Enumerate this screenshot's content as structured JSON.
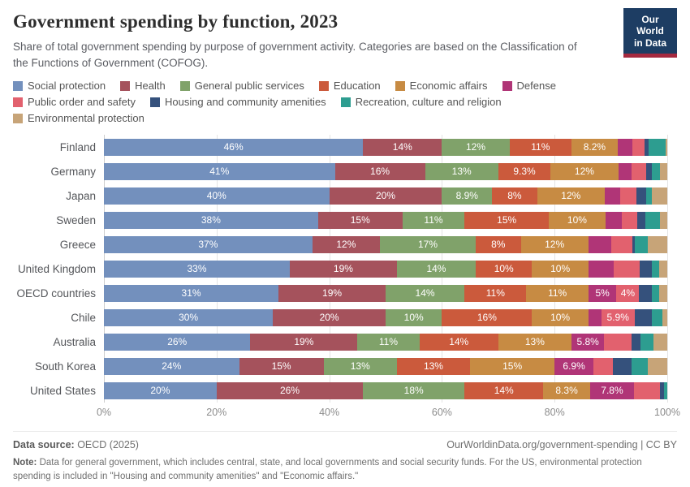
{
  "header": {
    "title": "Government spending by function, 2023",
    "subtitle": "Share of total government spending by purpose of government activity. Categories are based on the Classification of the Functions of Government (COFOG).",
    "logo": {
      "line1": "Our World",
      "line2": "in Data"
    }
  },
  "brand_colors": {
    "logo_navy": "#1d3d63",
    "logo_red": "#a5293f"
  },
  "chart_data": {
    "type": "bar",
    "variant": "horizontal-stacked",
    "unit": "%",
    "legend_position": "top",
    "grid": "vertical",
    "x_axis": {
      "min": 0,
      "max": 100,
      "ticks": [
        "0%",
        "20%",
        "40%",
        "60%",
        "80%",
        "100%"
      ]
    },
    "series_names": [
      "Social protection",
      "Health",
      "General public services",
      "Education",
      "Economic affairs",
      "Defense",
      "Public order and safety",
      "Housing and community amenities",
      "Recreation, culture and religion",
      "Environmental protection"
    ],
    "series_colors": [
      "#7390bd",
      "#a5525c",
      "#80a26a",
      "#cb5a3c",
      "#c78b43",
      "#b03577",
      "#e2616e",
      "#35517c",
      "#2d9d90",
      "#c7a478"
    ],
    "rows": [
      {
        "country": "Finland",
        "values": [
          46,
          14,
          12,
          11,
          8.2,
          2.6,
          2.2,
          0.7,
          3.0,
          0.3
        ],
        "labels": [
          "46%",
          "14%",
          "12%",
          "11%",
          "8.2%",
          "",
          "",
          "",
          "",
          ""
        ]
      },
      {
        "country": "Germany",
        "values": [
          41,
          16,
          13,
          9.3,
          12,
          2.3,
          2.7,
          0.9,
          1.5,
          1.3
        ],
        "labels": [
          "41%",
          "16%",
          "13%",
          "9.3%",
          "12%",
          "",
          "",
          "",
          "",
          ""
        ]
      },
      {
        "country": "Japan",
        "values": [
          40,
          20,
          8.9,
          8,
          12,
          2.8,
          2.8,
          1.7,
          1.0,
          2.8
        ],
        "labels": [
          "40%",
          "20%",
          "8.9%",
          "8%",
          "12%",
          "",
          "",
          "",
          "",
          ""
        ]
      },
      {
        "country": "Sweden",
        "values": [
          38,
          15,
          11,
          15,
          10,
          2.9,
          2.8,
          1.4,
          2.6,
          1.3
        ],
        "labels": [
          "38%",
          "15%",
          "11%",
          "15%",
          "10%",
          "",
          "",
          "",
          "",
          ""
        ]
      },
      {
        "country": "Greece",
        "values": [
          37,
          12,
          17,
          8,
          12,
          4.0,
          3.8,
          0.5,
          2.3,
          3.4
        ],
        "labels": [
          "37%",
          "12%",
          "17%",
          "8%",
          "12%",
          "",
          "",
          "",
          "",
          ""
        ]
      },
      {
        "country": "United Kingdom",
        "values": [
          33,
          19,
          14,
          10,
          10,
          4.5,
          4.6,
          2.2,
          1.3,
          1.4
        ],
        "labels": [
          "33%",
          "19%",
          "14%",
          "10%",
          "10%",
          "",
          "",
          "",
          "",
          ""
        ]
      },
      {
        "country": "OECD countries",
        "values": [
          31,
          19,
          14,
          11,
          11,
          5,
          4,
          2.2,
          1.3,
          1.5
        ],
        "labels": [
          "31%",
          "19%",
          "14%",
          "11%",
          "11%",
          "5%",
          "4%",
          "",
          "",
          ""
        ]
      },
      {
        "country": "Chile",
        "values": [
          30,
          20,
          10,
          16,
          10,
          2.3,
          5.9,
          3.0,
          1.9,
          0.9
        ],
        "labels": [
          "30%",
          "20%",
          "10%",
          "16%",
          "10%",
          "",
          "5.9%",
          "",
          "",
          ""
        ]
      },
      {
        "country": "Australia",
        "values": [
          26,
          19,
          11,
          14,
          13,
          5.8,
          4.8,
          1.6,
          2.3,
          2.5
        ],
        "labels": [
          "26%",
          "19%",
          "11%",
          "14%",
          "13%",
          "5.8%",
          "",
          "",
          "",
          ""
        ]
      },
      {
        "country": "South Korea",
        "values": [
          24,
          15,
          13,
          13,
          15,
          6.9,
          3.5,
          3.2,
          3.0,
          3.4
        ],
        "labels": [
          "24%",
          "15%",
          "13%",
          "13%",
          "15%",
          "6.9%",
          "",
          "",
          "",
          ""
        ]
      },
      {
        "country": "United States",
        "values": [
          20,
          26,
          18,
          14,
          8.3,
          7.8,
          4.6,
          0.7,
          0.6,
          0
        ],
        "labels": [
          "20%",
          "26%",
          "18%",
          "14%",
          "8.3%",
          "7.8%",
          "",
          "",
          "",
          ""
        ]
      }
    ]
  },
  "footer": {
    "datasource_label": "Data source:",
    "datasource_value": " OECD (2025)",
    "link": "OurWorldinData.org/government-spending | CC BY",
    "note_label": "Note:",
    "note_text": " Data for general government, which includes central, state, and local governments and social security funds. For the US, environmental protection spending is included in \"Housing and community amenities\" and \"Economic affairs.\""
  }
}
